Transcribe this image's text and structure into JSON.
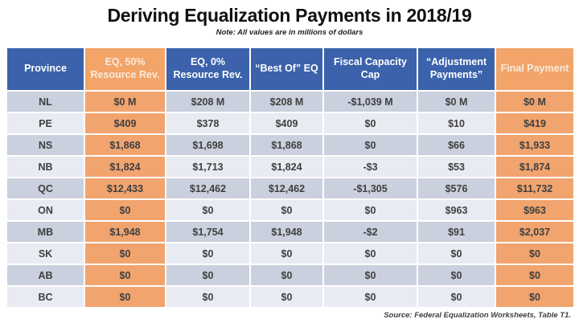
{
  "colors": {
    "header_blue": "#3b62ab",
    "header_orange": "#f2a469",
    "cell_orange": "#f1a46e",
    "band_dark": "#cad0dd",
    "band_light": "#e9ebf3",
    "data_text": "#3f3f3f",
    "orange_text": "#5e3a1d"
  },
  "chart_data": {
    "type": "table",
    "title": "Deriving Equalization Payments in 2018/19",
    "note": "Note: All values are in millions of dollars",
    "source": "Source: Federal Equalization Worksheets, Table T1.",
    "columns": [
      {
        "label": "Province",
        "accent": "blue",
        "width": 95
      },
      {
        "label": "EQ, 50% Resource Rev.",
        "accent": "orange",
        "width": 99
      },
      {
        "label": "EQ, 0% Resource Rev.",
        "accent": "blue",
        "width": 103
      },
      {
        "label": "“Best Of” EQ",
        "accent": "blue",
        "width": 89
      },
      {
        "label": "Fiscal Capacity Cap",
        "accent": "blue",
        "width": 115
      },
      {
        "label": "“Adjustment Payments”",
        "accent": "blue",
        "width": 95
      },
      {
        "label": "Final Payment",
        "accent": "orange",
        "width": 96
      }
    ],
    "rows": [
      {
        "province": "NL",
        "values": [
          "$0 M",
          "$208 M",
          "$208 M",
          "-$1,039 M",
          "$0 M",
          "$0 M"
        ]
      },
      {
        "province": "PE",
        "values": [
          "$409",
          "$378",
          "$409",
          "$0",
          "$10",
          "$419"
        ]
      },
      {
        "province": "NS",
        "values": [
          "$1,868",
          "$1,698",
          "$1,868",
          "$0",
          "$66",
          "$1,933"
        ]
      },
      {
        "province": "NB",
        "values": [
          "$1,824",
          "$1,713",
          "$1,824",
          "-$3",
          "$53",
          "$1,874"
        ]
      },
      {
        "province": "QC",
        "values": [
          "$12,433",
          "$12,462",
          "$12,462",
          "-$1,305",
          "$576",
          "$11,732"
        ]
      },
      {
        "province": "ON",
        "values": [
          "$0",
          "$0",
          "$0",
          "$0",
          "$963",
          "$963"
        ]
      },
      {
        "province": "MB",
        "values": [
          "$1,948",
          "$1,754",
          "$1,948",
          "-$2",
          "$91",
          "$2,037"
        ]
      },
      {
        "province": "SK",
        "values": [
          "$0",
          "$0",
          "$0",
          "$0",
          "$0",
          "$0"
        ]
      },
      {
        "province": "AB",
        "values": [
          "$0",
          "$0",
          "$0",
          "$0",
          "$0",
          "$0"
        ]
      },
      {
        "province": "BC",
        "values": [
          "$0",
          "$0",
          "$0",
          "$0",
          "$0",
          "$0"
        ]
      }
    ]
  }
}
